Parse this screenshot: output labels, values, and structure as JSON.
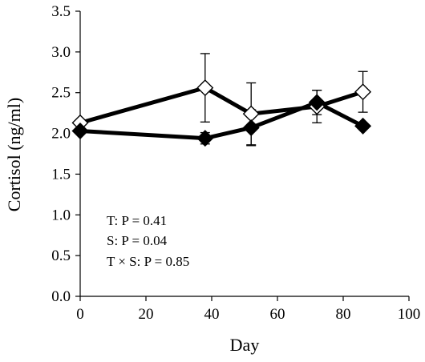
{
  "chart_data": {
    "type": "line",
    "xlabel": "Day",
    "ylabel": "Cortisol (ng/ml)",
    "xlim": [
      0,
      100
    ],
    "ylim": [
      0,
      3.5
    ],
    "x_ticks": [
      "0",
      "20",
      "40",
      "60",
      "80",
      "100"
    ],
    "y_ticks": [
      "0.0",
      "0.5",
      "1.0",
      "1.5",
      "2.0",
      "2.5",
      "3.0",
      "3.5"
    ],
    "grid": false,
    "legend": "none",
    "series": [
      {
        "marker": "open-diamond",
        "color": "#000000",
        "fill": "#ffffff",
        "x": [
          0,
          38,
          52,
          72,
          86
        ],
        "y": [
          2.13,
          2.56,
          2.24,
          2.33,
          2.51
        ],
        "err": [
          0.02,
          0.42,
          0.38,
          0.2,
          0.25
        ]
      },
      {
        "marker": "filled-diamond",
        "color": "#000000",
        "fill": "#000000",
        "x": [
          0,
          38,
          52,
          72,
          86
        ],
        "y": [
          2.03,
          1.94,
          2.07,
          2.38,
          2.09
        ],
        "err": [
          0.0,
          0.07,
          0.22,
          0.15,
          0.0
        ]
      }
    ],
    "annotations": [
      "T: P = 0.41",
      "S: P = 0.04",
      "T × S: P = 0.85"
    ]
  }
}
